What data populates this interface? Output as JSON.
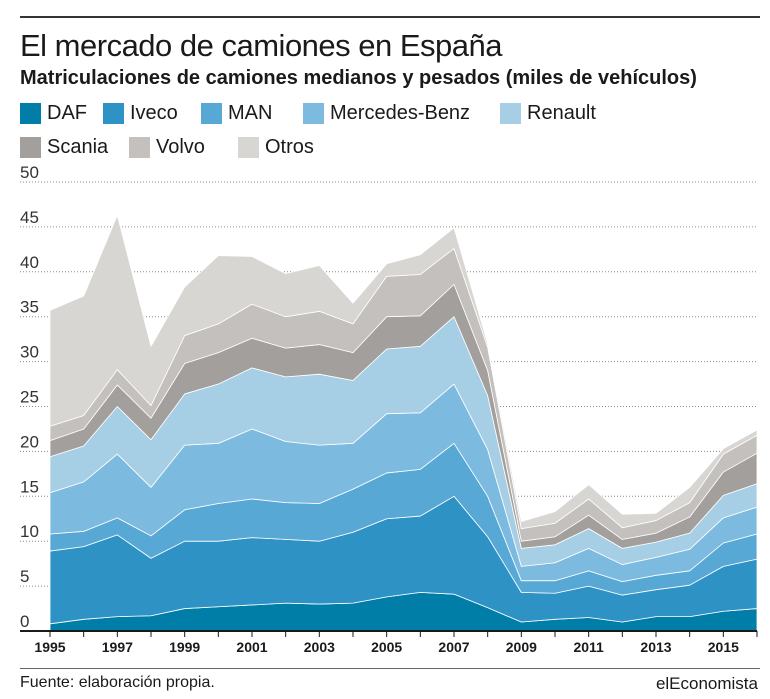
{
  "header": {
    "title": "El mercado de camiones en España",
    "subtitle": "Matriculaciones de camiones medianos y pesados (miles de vehículos)"
  },
  "footer": {
    "source": "Fuente: elaboración propia.",
    "brand": "elEconomista"
  },
  "chart_data": {
    "type": "area",
    "stacked": true,
    "title": "El mercado de camiones en España",
    "subtitle": "Matriculaciones de camiones medianos y pesados (miles de vehículos)",
    "xlabel": "",
    "ylabel": "",
    "x": [
      1995,
      1996,
      1997,
      1998,
      1999,
      2000,
      2001,
      2002,
      2003,
      2004,
      2005,
      2006,
      2007,
      2008,
      2009,
      2010,
      2011,
      2012,
      2013,
      2014,
      2015,
      2016
    ],
    "xticks": [
      "1995",
      "1997",
      "1999",
      "2001",
      "2003",
      "2005",
      "2007",
      "2009",
      "2011",
      "2013",
      "2015"
    ],
    "ylim": [
      0,
      50
    ],
    "yticks": [
      0,
      5,
      10,
      15,
      20,
      25,
      30,
      35,
      40,
      45,
      50
    ],
    "grid": "horizontal",
    "legend_position": "top",
    "series": [
      {
        "name": "DAF",
        "color": "#007ea7",
        "values": [
          0.8,
          1.3,
          1.6,
          1.7,
          2.5,
          2.7,
          2.9,
          3.1,
          3.0,
          3.1,
          3.8,
          4.3,
          4.1,
          2.6,
          1.0,
          1.3,
          1.5,
          1.0,
          1.6,
          1.6,
          2.2,
          2.5
        ]
      },
      {
        "name": "Iveco",
        "color": "#2f92c5",
        "values": [
          8.1,
          8.1,
          9.1,
          6.4,
          7.5,
          7.3,
          7.5,
          7.1,
          7.0,
          7.9,
          8.7,
          8.5,
          10.9,
          7.9,
          3.3,
          2.9,
          3.5,
          3.0,
          3.0,
          3.5,
          5.0,
          5.5
        ]
      },
      {
        "name": "MAN",
        "color": "#58a8d6",
        "values": [
          1.9,
          1.7,
          1.9,
          2.5,
          3.5,
          4.2,
          4.3,
          4.1,
          4.2,
          4.8,
          5.1,
          5.2,
          5.9,
          4.5,
          1.3,
          1.4,
          1.7,
          1.5,
          1.6,
          1.6,
          2.6,
          2.8
        ]
      },
      {
        "name": "Mercedes-Benz",
        "color": "#7cbadf",
        "values": [
          4.6,
          5.5,
          7.1,
          5.4,
          7.2,
          6.7,
          7.8,
          6.8,
          6.5,
          5.1,
          6.6,
          6.3,
          6.6,
          5.2,
          1.6,
          2.0,
          2.5,
          1.9,
          2.0,
          2.4,
          2.8,
          3.0
        ]
      },
      {
        "name": "Renault",
        "color": "#a6cee4",
        "values": [
          4.0,
          4.0,
          5.3,
          5.3,
          5.7,
          6.6,
          6.8,
          7.2,
          7.9,
          7.0,
          7.2,
          7.4,
          7.5,
          6.0,
          2.0,
          2.0,
          2.2,
          1.8,
          1.7,
          1.8,
          2.5,
          2.6
        ]
      },
      {
        "name": "Scania",
        "color": "#a39f9c",
        "values": [
          1.8,
          1.9,
          2.4,
          2.4,
          3.4,
          3.5,
          3.3,
          3.2,
          3.3,
          3.1,
          3.6,
          3.4,
          3.6,
          2.8,
          0.8,
          0.9,
          1.5,
          1.0,
          1.0,
          1.8,
          2.6,
          3.4
        ]
      },
      {
        "name": "Volvo",
        "color": "#c3c0bd",
        "values": [
          1.6,
          1.5,
          1.7,
          1.4,
          3.1,
          3.2,
          3.8,
          3.5,
          3.7,
          3.2,
          4.5,
          4.6,
          4.0,
          2.6,
          1.4,
          1.5,
          1.8,
          1.3,
          1.4,
          1.6,
          2.0,
          2.0
        ]
      },
      {
        "name": "Otros",
        "color": "#d8d6d3",
        "values": [
          12.9,
          13.3,
          17.2,
          6.6,
          5.4,
          7.6,
          5.3,
          4.8,
          5.1,
          2.3,
          1.4,
          2.2,
          2.3,
          0.4,
          0.8,
          1.3,
          1.6,
          1.5,
          0.8,
          1.7,
          0.6,
          0.6
        ]
      }
    ]
  }
}
